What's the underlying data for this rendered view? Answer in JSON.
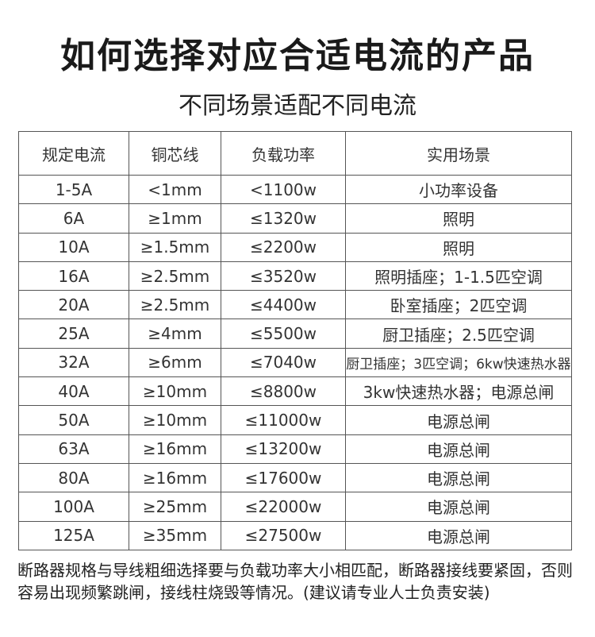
{
  "header": {
    "title": "如何选择对应合适电流的产品",
    "subtitle": "不同场景适配不同电流"
  },
  "table": {
    "columns": [
      "规定电流",
      "铜芯线",
      "负载功率",
      "实用场景"
    ],
    "rows": [
      [
        "1-5A",
        "<1mm",
        "<1100w",
        "小功率设备"
      ],
      [
        "6A",
        "≥1mm",
        "≤1320w",
        "照明"
      ],
      [
        "10A",
        "≥1.5mm",
        "≤2200w",
        "照明"
      ],
      [
        "16A",
        "≥2.5mm",
        "≤3520w",
        "照明插座；1-1.5匹空调"
      ],
      [
        "20A",
        "≥2.5mm",
        "≤4400w",
        "卧室插座；2匹空调"
      ],
      [
        "25A",
        "≥4mm",
        "≤5500w",
        "厨卫插座；2.5匹空调"
      ],
      [
        "32A",
        "≥6mm",
        "≤7040w",
        "厨卫插座；3匹空调；6kw快速热水器"
      ],
      [
        "40A",
        "≥10mm",
        "≤8800w",
        "3kw快速热水器；电源总闸"
      ],
      [
        "50A",
        "≥10mm",
        "≤11000w",
        "电源总闸"
      ],
      [
        "63A",
        "≥16mm",
        "≤13200w",
        "电源总闸"
      ],
      [
        "80A",
        "≥16mm",
        "≤17600w",
        "电源总闸"
      ],
      [
        "100A",
        "≥25mm",
        "≤22000w",
        "电源总闸"
      ],
      [
        "125A",
        "≥35mm",
        "≤27500w",
        "电源总闸"
      ]
    ]
  },
  "footer": {
    "note": "断路器规格与导线粗细选择要与负载功率大小相匹配，断路器接线要紧固，否则容易出现频繁跳闸，接线柱烧毁等情况。(建议请专业人士负责安装)"
  }
}
